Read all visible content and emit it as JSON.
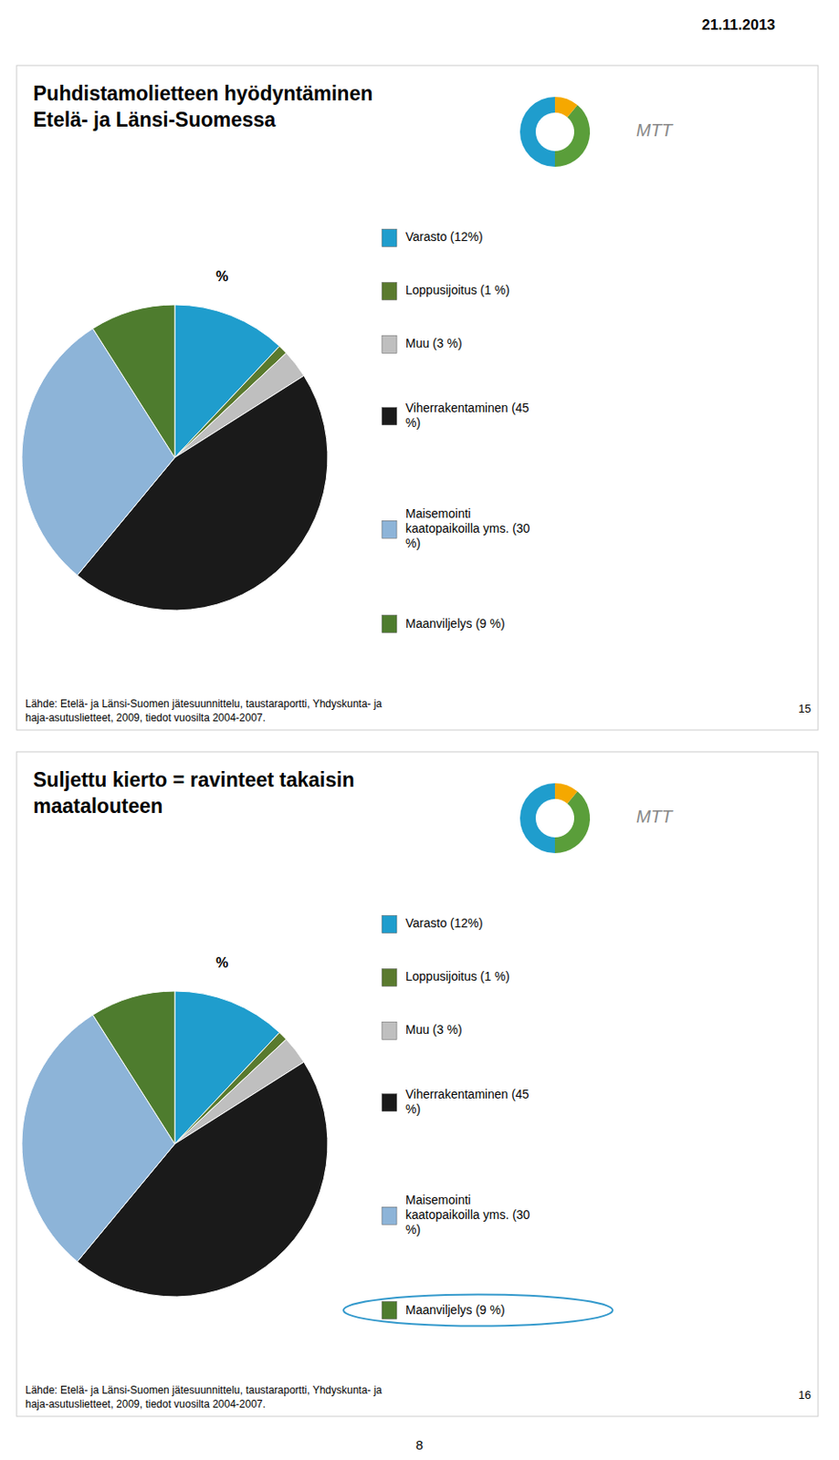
{
  "chart_data": [
    {
      "type": "pie",
      "title": "Puhdistamolietteen hyödyntäminen\nEtelä- ja Länsi-Suomessa",
      "categories": [
        "Varasto (12%)",
        "Loppusijoitus (1 %)",
        "Muu (3 %)",
        "Viherrakentaminen (45\n%)",
        "Maisemointi\nkaatopaikoilla yms. (30\n%)",
        "Maanviljelys (9 %)"
      ],
      "values": [
        12,
        1,
        3,
        45,
        30,
        9
      ],
      "colors": [
        "#1F9DCD",
        "#5A7A2E",
        "#BFBFBF",
        "#1A1A1A",
        "#8DB4D8",
        "#4E7C2E"
      ],
      "legend": "right",
      "annotations": [
        "%",
        "MTT",
        "15",
        "Lähde: Etelä- ja Länsi-Suomen jätesuunnittelu, taustaraportti, Yhdyskunta- ja\nhaja-asutuslietteet, 2009, tiedot vuosilta 2004-2007."
      ]
    },
    {
      "type": "pie",
      "title": "Suljettu kierto = ravinteet takaisin\nmaatalouteen",
      "categories": [
        "Varasto (12%)",
        "Loppusijoitus (1 %)",
        "Muu (3 %)",
        "Viherrakentaminen (45\n%)",
        "Maisemointi\nkaatopaikoilla yms. (30\n%)",
        "Maanviljelys (9 %)"
      ],
      "values": [
        12,
        1,
        3,
        45,
        30,
        9
      ],
      "colors": [
        "#1F9DCD",
        "#5A7A2E",
        "#BFBFBF",
        "#1A1A1A",
        "#8DB4D8",
        "#4E7C2E"
      ],
      "legend": "right",
      "annotations": [
        "%",
        "MTT",
        "16",
        "Lähde: Etelä- ja Länsi-Suomen jätesuunnittelu, taustaraportti, Yhdyskunta- ja\nhaja-asutuslietteet, 2009, tiedot vuosilta 2004-2007."
      ]
    }
  ],
  "annotations": [
    "21.11.2013",
    "8"
  ]
}
